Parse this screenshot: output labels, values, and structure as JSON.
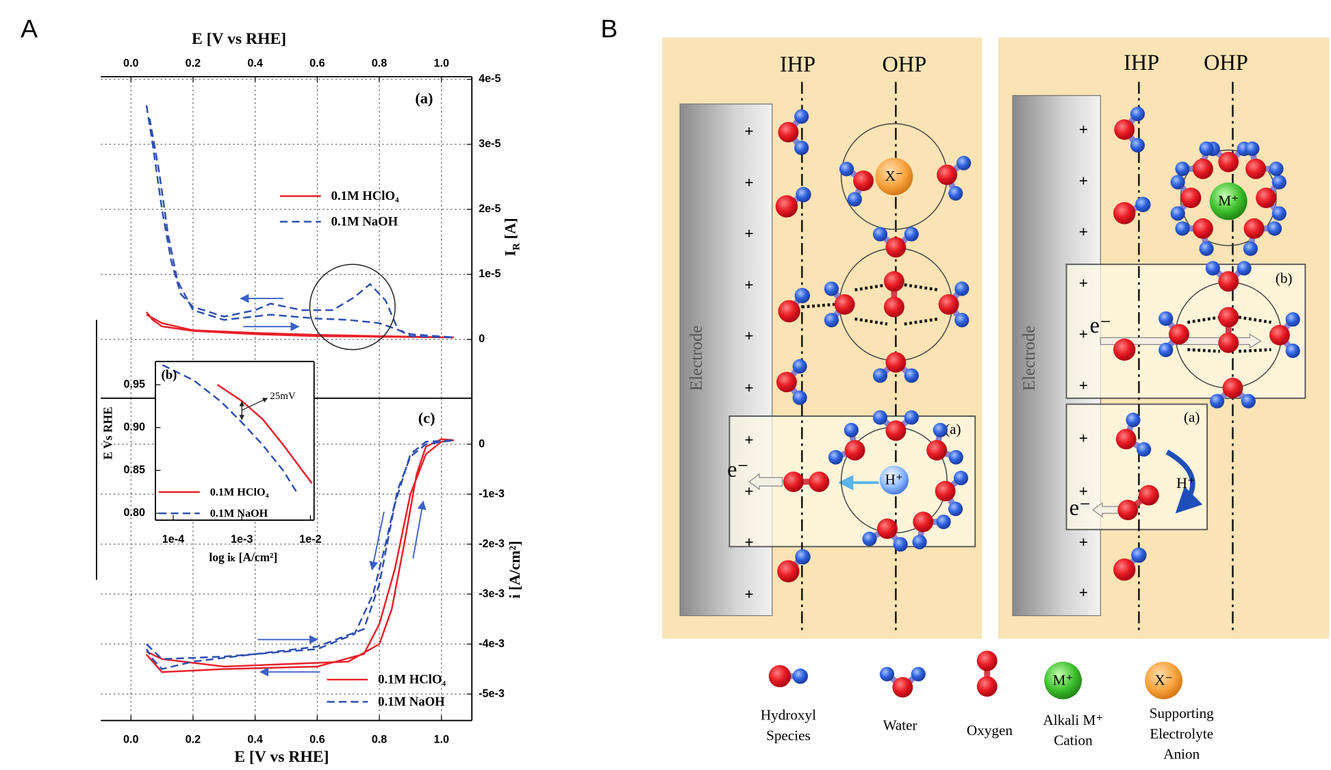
{
  "panel_labels": [
    "A",
    "B"
  ],
  "chart_data": [
    {
      "type": "line",
      "label": "(a)",
      "xlabel": "E [V vs RHE]",
      "ylabel": [
        "I",
        "R",
        " [A]"
      ],
      "xlim": [
        -0.097,
        1.098
      ],
      "xticks": [
        {
          "value": 0,
          "label": "0.0"
        },
        0.2,
        0.4,
        0.6,
        0.8,
        {
          "value": 1,
          "label": "1.0"
        }
      ],
      "ylim": [
        -9.05e-06,
        4.04e-05
      ],
      "yticks": [
        0,
        {
          "value": 1e-05,
          "label": "1e-5"
        },
        {
          "value": 2e-05,
          "label": "2e-5"
        },
        {
          "value": 3e-05,
          "label": "3e-5"
        },
        {
          "value": 4e-05,
          "label": "4e-5"
        }
      ],
      "grid": true,
      "legend": "center right",
      "series": [
        {
          "name": "0.1M HClO₄",
          "color": "#e8212a",
          "line_style": "solid",
          "x": [
            0.05,
            0.07,
            0.1,
            0.2,
            0.4,
            0.6,
            0.8,
            1.04,
            0.8,
            0.6,
            0.4,
            0.2,
            0.1,
            0.05
          ],
          "values": [
            4.2e-06,
            3e-06,
            2e-06,
            1.3e-06,
            8e-07,
            5e-07,
            4e-07,
            3e-07,
            5e-07,
            7e-07,
            1e-06,
            1.4e-06,
            2.5e-06,
            3.8e-06
          ]
        },
        {
          "name": "0.1M NaOH",
          "color": "#2f4fb0",
          "line_style": "dashed",
          "x": [
            0.05,
            0.07,
            0.1,
            0.13,
            0.16,
            0.2,
            0.3,
            0.4,
            0.45,
            0.55,
            0.65,
            0.72,
            0.77,
            0.82,
            0.86,
            0.9,
            1.04,
            0.9,
            0.8,
            0.7,
            0.6,
            0.45,
            0.3,
            0.2,
            0.15,
            0.12,
            0.09,
            0.06
          ],
          "values": [
            3.6e-05,
            3e-05,
            2e-05,
            1.2e-05,
            7e-06,
            5e-06,
            3.5e-06,
            4.5e-06,
            5.5e-06,
            4.5e-06,
            4.5e-06,
            6.5e-06,
            8.5e-06,
            6e-06,
            1.5e-06,
            5e-07,
            3e-07,
            8e-07,
            2.5e-06,
            3e-06,
            3.2e-06,
            3.8e-06,
            3e-06,
            4.5e-06,
            9e-06,
            1.6e-05,
            2.6e-05,
            3.4e-05
          ]
        }
      ]
    },
    {
      "type": "line",
      "label": "(c)",
      "xlabel": "E [V vs RHE]",
      "ylabel": "i [A/cm²]",
      "xlim": [
        -0.097,
        1.098
      ],
      "xticks": [
        {
          "value": 0,
          "label": "0.0"
        },
        0.2,
        0.4,
        0.6,
        0.8,
        {
          "value": 1,
          "label": "1.0"
        }
      ],
      "ylim": [
        -0.00553,
        0.00092
      ],
      "yticks": [
        0,
        {
          "value": -0.001,
          "label": "-1e-3"
        },
        {
          "value": -0.002,
          "label": "-2e-3"
        },
        {
          "value": -0.003,
          "label": "-3e-3"
        },
        {
          "value": -0.004,
          "label": "-4e-3"
        },
        {
          "value": -0.005,
          "label": "-5e-3"
        }
      ],
      "grid": true,
      "legend": "lower right",
      "series": [
        {
          "name": "0.1M HClO₄",
          "color": "#e8212a",
          "line_style": "solid",
          "x": [
            0.05,
            0.1,
            0.3,
            0.6,
            0.75,
            0.8,
            0.85,
            0.9,
            0.95,
            1.0,
            1.04,
            1.0,
            0.95,
            0.92,
            0.88,
            0.84,
            0.8,
            0.7,
            0.5,
            0.3,
            0.1,
            0.05
          ],
          "values": [
            -0.00421,
            -0.00456,
            -0.0045,
            -0.00445,
            -0.0042,
            -0.0036,
            -0.0025,
            -0.001,
            -0.0002,
            5e-05,
            8e-05,
            0.0001,
            -5e-05,
            -0.0006,
            -0.002,
            -0.0033,
            -0.004,
            -0.00435,
            -0.0044,
            -0.00445,
            -0.0043,
            -0.00415
          ]
        },
        {
          "name": "0.1M NaOH",
          "color": "#2f4fb0",
          "line_style": "dashed",
          "x": [
            0.05,
            0.1,
            0.3,
            0.6,
            0.72,
            0.78,
            0.82,
            0.86,
            0.9,
            0.95,
            1.04,
            0.95,
            0.9,
            0.85,
            0.8,
            0.75,
            0.6,
            0.4,
            0.2,
            0.1,
            0.07,
            0.05
          ],
          "values": [
            -0.004,
            -0.0043,
            -0.00425,
            -0.0041,
            -0.0038,
            -0.003,
            -0.002,
            -0.0009,
            -0.00025,
            0,
            8e-05,
            5e-05,
            -0.0002,
            -0.0012,
            -0.0028,
            -0.0037,
            -0.00405,
            -0.0042,
            -0.00435,
            -0.0045,
            -0.0043,
            -0.0041
          ]
        }
      ]
    },
    {
      "type": "line",
      "label": "(b)",
      "xlabel": "log iₖ [A/cm²]",
      "ylabel": "E Vs RHE",
      "log_x": true,
      "xlim": [
        5.5e-05,
        0.0113
      ],
      "xticks": [
        {
          "value": 0.0001,
          "label": "1e-4"
        },
        {
          "value": 0.001,
          "label": "1e-3"
        },
        {
          "value": 0.01,
          "label": "1e-2"
        }
      ],
      "ylim": [
        0.792,
        0.977
      ],
      "yticks": [
        {
          "value": 0.8,
          "label": "0.80"
        },
        0.85,
        {
          "value": 0.9,
          "label": "0.90"
        },
        0.95
      ],
      "grid": false,
      "legend": "lower left",
      "annotation": "25mV",
      "series": [
        {
          "name": "0.1M HClO₄",
          "color": "#e8212a",
          "line_style": "solid",
          "x": [
            0.00044,
            0.001,
            0.002,
            0.004,
            0.0105
          ],
          "values": [
            0.95,
            0.931,
            0.91,
            0.88,
            0.835
          ]
        },
        {
          "name": "0.1M NaOH",
          "color": "#2f4fb0",
          "line_style": "dashed",
          "x": [
            7e-05,
            0.0002,
            0.0005,
            0.001,
            0.002,
            0.004,
            0.0066
          ],
          "values": [
            0.973,
            0.955,
            0.93,
            0.906,
            0.88,
            0.85,
            0.822
          ]
        }
      ]
    }
  ],
  "diagram": {
    "layer_labels": [
      "IHP",
      "OHP"
    ],
    "electrode": "Electrode",
    "surface_charge": "+",
    "electron": "e⁻",
    "boxes": [
      "(a)",
      "(b)"
    ],
    "ions": {
      "anion": "X⁻",
      "cation": "M⁺",
      "proton": "H⁺"
    },
    "legend": [
      {
        "lines": [
          "Hydroxyl",
          "Species"
        ]
      },
      {
        "lines": [
          "Water"
        ]
      },
      {
        "lines": [
          "Oxygen"
        ]
      },
      {
        "lines": [
          "Alkali M⁺",
          "Cation"
        ]
      },
      {
        "lines": [
          "Supporting",
          "Electrolyte",
          "Anion"
        ]
      }
    ]
  }
}
